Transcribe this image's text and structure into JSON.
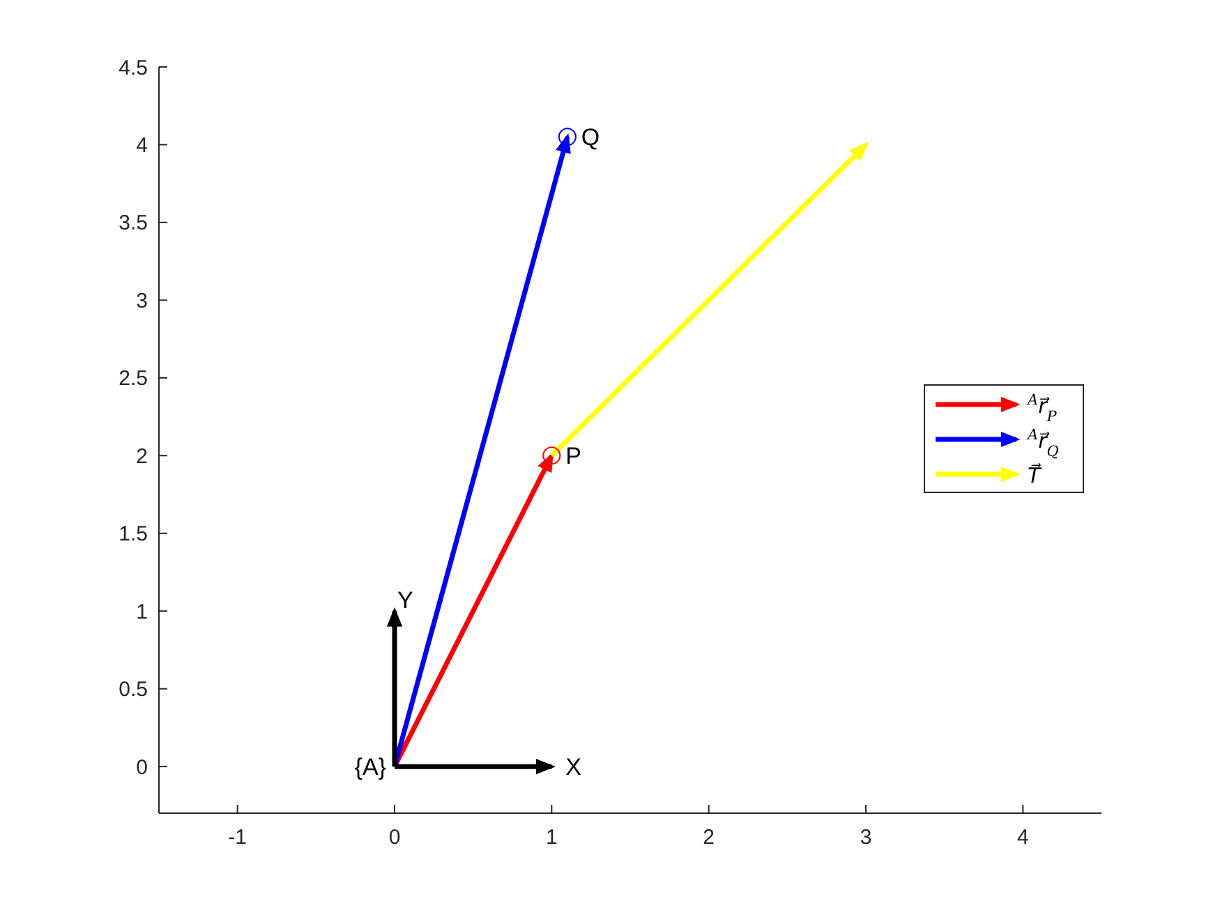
{
  "chart_data": {
    "type": "line",
    "xlim": [
      -1.5,
      4.5
    ],
    "ylim": [
      -0.3,
      4.5
    ],
    "xticks": [
      -1,
      0,
      1,
      2,
      3,
      4
    ],
    "yticks": [
      0,
      0.5,
      1,
      1.5,
      2,
      2.5,
      3,
      3.5,
      4,
      4.5
    ],
    "grid": false,
    "legend": "right",
    "series": [
      {
        "name": "$^{A}$r⃗$_{P}$",
        "color": "#ff0000",
        "x": [
          0,
          1
        ],
        "values": [
          0,
          2
        ]
      },
      {
        "name": "$^{A}$r⃗$_{Q}$",
        "color": "#0000ff",
        "x": [
          0,
          1.1
        ],
        "values": [
          0,
          4.05
        ]
      },
      {
        "name": "T⃗",
        "color": "#ffff00",
        "x": [
          1,
          3
        ],
        "values": [
          2,
          4
        ]
      },
      {
        "color": "#000000",
        "x": [
          0,
          1
        ],
        "values": [
          0,
          0
        ]
      },
      {
        "color": "#000000",
        "x": [
          0,
          0
        ],
        "values": [
          0,
          1
        ]
      },
      {
        "type": "scatter",
        "marker": "circle",
        "color": "#ff0000",
        "x": [
          1
        ],
        "values": [
          2
        ]
      },
      {
        "type": "scatter",
        "marker": "circle",
        "color": "#0000ff",
        "x": [
          1.1
        ],
        "values": [
          4.05
        ]
      }
    ],
    "annotations": [
      {
        "text": "Q",
        "x": 1.1,
        "y": 4.05
      },
      {
        "text": "P",
        "x": 1,
        "y": 2
      },
      {
        "text": "X",
        "x": 1,
        "y": 0
      },
      {
        "text": "Y",
        "x": 0,
        "y": 1
      },
      {
        "text": "{A}",
        "x": 0,
        "y": 0
      }
    ]
  }
}
